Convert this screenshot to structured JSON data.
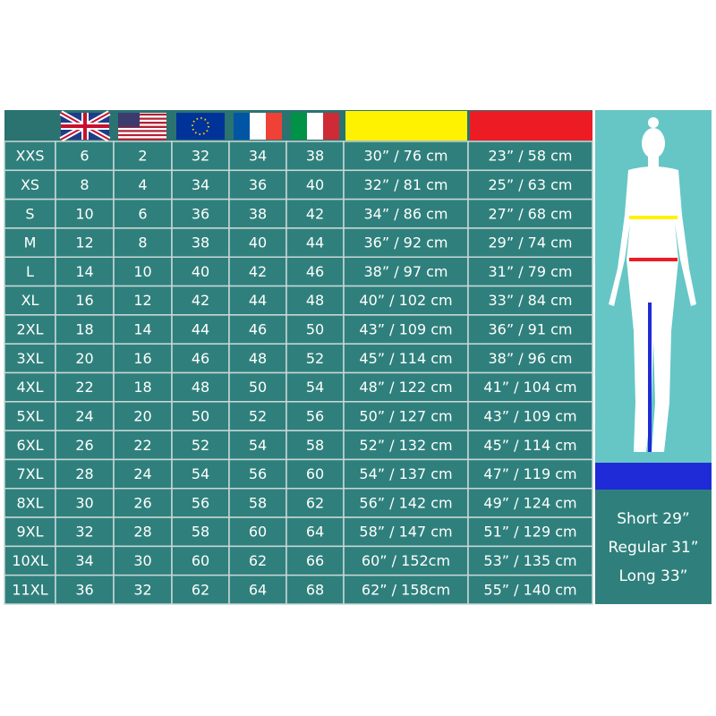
{
  "table": {
    "rows": [
      [
        "XXS",
        "6",
        "2",
        "32",
        "34",
        "38",
        "30” / 76 cm",
        "23” / 58 cm"
      ],
      [
        "XS",
        "8",
        "4",
        "34",
        "36",
        "40",
        "32” / 81 cm",
        "25” / 63 cm"
      ],
      [
        "S",
        "10",
        "6",
        "36",
        "38",
        "42",
        "34” / 86 cm",
        "27” / 68 cm"
      ],
      [
        "M",
        "12",
        "8",
        "38",
        "40",
        "44",
        "36” / 92 cm",
        "29” / 74 cm"
      ],
      [
        "L",
        "14",
        "10",
        "40",
        "42",
        "46",
        "38” / 97 cm",
        "31” / 79 cm"
      ],
      [
        "XL",
        "16",
        "12",
        "42",
        "44",
        "48",
        "40” / 102 cm",
        "33” / 84 cm"
      ],
      [
        "2XL",
        "18",
        "14",
        "44",
        "46",
        "50",
        "43” / 109 cm",
        "36” / 91 cm"
      ],
      [
        "3XL",
        "20",
        "16",
        "46",
        "48",
        "52",
        "45” / 114 cm",
        "38” / 96 cm"
      ],
      [
        "4XL",
        "22",
        "18",
        "48",
        "50",
        "54",
        "48” / 122 cm",
        "41” / 104 cm"
      ],
      [
        "5XL",
        "24",
        "20",
        "50",
        "52",
        "56",
        "50” / 127 cm",
        "43” / 109 cm"
      ],
      [
        "6XL",
        "26",
        "22",
        "52",
        "54",
        "58",
        "52” / 132 cm",
        "45” / 114 cm"
      ],
      [
        "7XL",
        "28",
        "24",
        "54",
        "56",
        "60",
        "54” / 137 cm",
        "47” / 119 cm"
      ],
      [
        "8XL",
        "30",
        "26",
        "56",
        "58",
        "62",
        "56” / 142 cm",
        "49” / 124 cm"
      ],
      [
        "9XL",
        "32",
        "28",
        "58",
        "60",
        "64",
        "58” / 147 cm",
        "51” / 129 cm"
      ],
      [
        "10XL",
        "34",
        "30",
        "60",
        "62",
        "66",
        "60” / 152cm",
        "53” / 135 cm"
      ],
      [
        "11XL",
        "36",
        "32",
        "62",
        "64",
        "68",
        "62” / 158cm",
        "55” / 140 cm"
      ]
    ]
  },
  "inseam": [
    "Short 29”",
    "Regular 31”",
    "Long 33”"
  ]
}
